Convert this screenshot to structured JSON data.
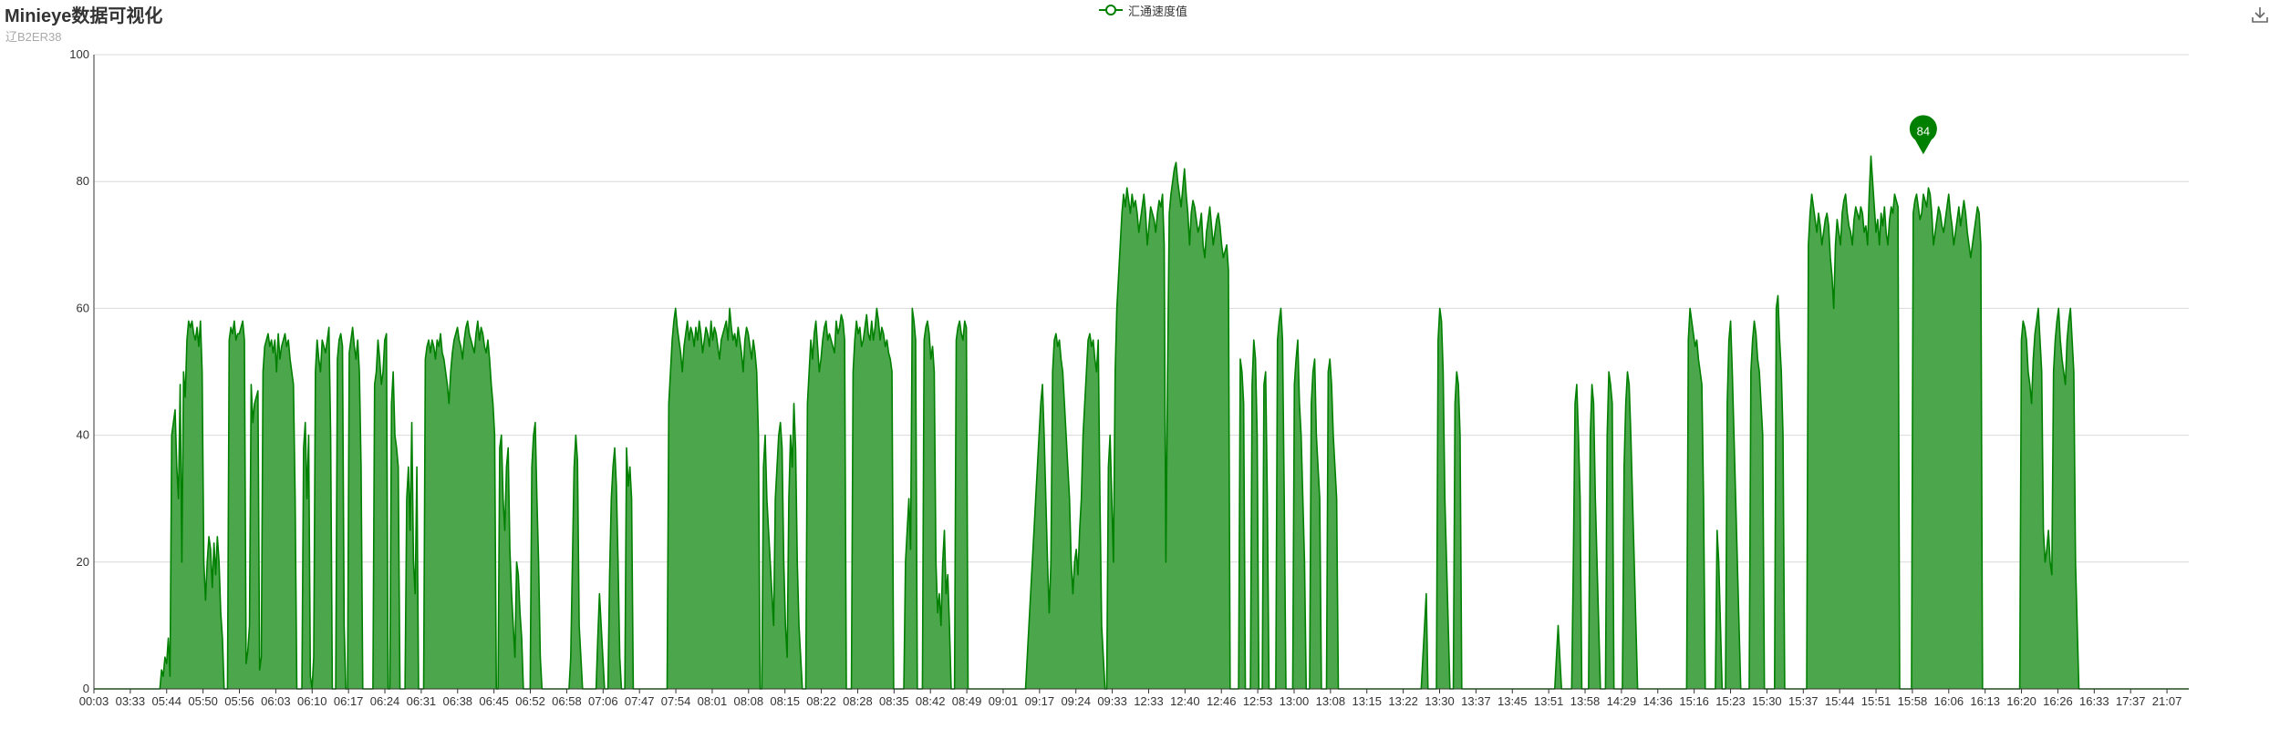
{
  "header": {
    "title": "Minieye数据可视化",
    "subtitle": "辽B2ER38"
  },
  "toolbar": {
    "download_icon": "download-icon"
  },
  "colors": {
    "line": "#008000",
    "area": "#4CA64C",
    "grid": "#d9d9d9",
    "axis": "#333333",
    "marker": "#008000",
    "marker_text": "#ffffff"
  },
  "chart_data": {
    "type": "area",
    "title": "Minieye数据可视化",
    "subtitle": "辽B2ER38",
    "legend": [
      "汇通速度值"
    ],
    "legend_position": "top-center",
    "grid": true,
    "ylim": [
      0,
      100
    ],
    "y_ticks": [
      0,
      20,
      40,
      60,
      80,
      100
    ],
    "x_tick_labels": [
      "00:03",
      "03:33",
      "05:44",
      "05:50",
      "05:56",
      "06:03",
      "06:10",
      "06:17",
      "06:24",
      "06:31",
      "06:38",
      "06:45",
      "06:52",
      "06:58",
      "07:06",
      "07:47",
      "07:54",
      "08:01",
      "08:08",
      "08:15",
      "08:22",
      "08:28",
      "08:35",
      "08:42",
      "08:49",
      "09:01",
      "09:17",
      "09:24",
      "09:33",
      "12:33",
      "12:40",
      "12:46",
      "12:53",
      "13:00",
      "13:08",
      "13:15",
      "13:22",
      "13:30",
      "13:37",
      "13:45",
      "13:51",
      "13:58",
      "14:29",
      "14:36",
      "15:16",
      "15:23",
      "15:30",
      "15:37",
      "15:44",
      "15:51",
      "15:58",
      "16:06",
      "16:13",
      "16:20",
      "16:26",
      "16:33",
      "17:37",
      "21:07"
    ],
    "series": [
      {
        "name": "汇通速度值",
        "max_marker": 84,
        "max_at_tick": 50.3,
        "values": [
          0,
          0,
          0,
          0,
          0,
          0,
          0,
          0,
          0,
          0,
          0,
          0,
          0,
          0,
          0,
          0,
          0,
          0,
          0,
          0,
          0,
          0,
          0,
          0,
          0,
          0,
          0,
          0,
          0,
          0,
          0,
          0,
          0,
          0,
          0,
          0,
          0,
          0,
          0,
          0,
          3,
          2,
          5,
          4,
          8,
          2,
          40,
          42,
          44,
          35,
          30,
          48,
          20,
          50,
          46,
          55,
          58,
          57,
          58,
          56,
          55,
          57,
          54,
          58,
          50,
          20,
          14,
          20,
          24,
          22,
          16,
          23,
          18,
          24,
          20,
          12,
          8,
          0,
          0,
          0,
          55,
          57,
          56,
          58,
          55,
          56,
          56,
          57,
          58,
          55,
          4,
          6,
          10,
          48,
          42,
          45,
          46,
          47,
          3,
          5,
          50,
          54,
          55,
          56,
          54,
          55,
          53,
          55,
          50,
          56,
          52,
          54,
          55,
          56,
          54,
          55,
          52,
          50,
          48,
          30,
          0,
          0,
          0,
          0,
          38,
          42,
          30,
          40,
          2,
          0,
          5,
          50,
          55,
          52,
          50,
          55,
          54,
          53,
          55,
          57,
          40,
          0,
          0,
          0,
          52,
          55,
          56,
          54,
          10,
          0,
          0,
          53,
          55,
          57,
          54,
          52,
          55,
          50,
          35,
          0,
          0,
          0,
          0,
          0,
          0,
          0,
          48,
          50,
          55,
          52,
          48,
          50,
          55,
          56,
          0,
          0,
          45,
          50,
          40,
          38,
          35,
          0,
          0,
          0,
          0,
          30,
          35,
          25,
          42,
          20,
          15,
          35,
          0,
          0,
          0,
          0,
          52,
          54,
          55,
          53,
          55,
          54,
          52,
          55,
          54,
          56,
          53,
          52,
          50,
          48,
          45,
          50,
          53,
          55,
          56,
          57,
          55,
          54,
          52,
          55,
          57,
          58,
          56,
          55,
          54,
          53,
          56,
          58,
          55,
          57,
          56,
          54,
          53,
          55,
          52,
          48,
          45,
          40,
          0,
          0,
          38,
          40,
          30,
          25,
          35,
          38,
          22,
          15,
          10,
          5,
          20,
          18,
          12,
          8,
          0,
          0,
          0,
          0,
          0,
          35,
          40,
          42,
          30,
          20,
          5,
          0,
          0,
          0,
          0,
          0,
          0,
          0,
          0,
          0,
          0,
          0,
          0,
          0,
          0,
          0,
          0,
          0,
          5,
          20,
          35,
          40,
          36,
          10,
          5,
          0,
          0,
          0,
          0,
          0,
          0,
          0,
          0,
          0,
          8,
          15,
          10,
          5,
          0,
          0,
          0,
          18,
          30,
          35,
          38,
          32,
          20,
          5,
          0,
          0,
          0,
          38,
          32,
          35,
          30,
          0,
          0,
          0,
          0,
          0,
          0,
          0,
          0,
          0,
          0,
          0,
          0,
          0,
          0,
          0,
          0,
          0,
          0,
          0,
          0,
          0,
          45,
          50,
          55,
          58,
          60,
          57,
          55,
          53,
          50,
          54,
          56,
          58,
          55,
          57,
          56,
          54,
          57,
          55,
          58,
          56,
          53,
          55,
          57,
          56,
          54,
          58,
          55,
          57,
          56,
          54,
          52,
          55,
          56,
          57,
          58,
          55,
          60,
          57,
          55,
          56,
          54,
          57,
          55,
          53,
          50,
          55,
          57,
          56,
          54,
          52,
          55,
          53,
          50,
          40,
          0,
          0,
          35,
          40,
          30,
          25,
          20,
          15,
          10,
          30,
          35,
          40,
          42,
          38,
          20,
          10,
          5,
          30,
          40,
          35,
          45,
          38,
          20,
          10,
          5,
          0,
          0,
          0,
          45,
          50,
          55,
          52,
          56,
          58,
          54,
          50,
          52,
          55,
          57,
          58,
          55,
          56,
          55,
          54,
          53,
          58,
          56,
          57,
          59,
          58,
          55,
          0,
          0,
          0,
          0,
          50,
          55,
          58,
          56,
          57,
          54,
          55,
          57,
          59,
          56,
          55,
          58,
          55,
          57,
          60,
          58,
          55,
          57,
          56,
          54,
          55,
          53,
          52,
          50,
          0,
          0,
          0,
          0,
          0,
          0,
          0,
          20,
          25,
          30,
          22,
          60,
          58,
          55,
          0,
          0,
          0,
          0,
          55,
          57,
          58,
          56,
          52,
          54,
          50,
          20,
          12,
          15,
          10,
          20,
          25,
          15,
          18,
          10,
          0,
          0,
          0,
          55,
          57,
          58,
          56,
          55,
          58,
          57,
          0,
          0,
          0,
          0,
          0,
          0,
          0,
          0,
          0,
          0,
          0,
          0,
          0,
          0,
          0,
          0,
          0,
          0,
          0,
          0,
          0,
          0,
          0,
          0,
          0,
          0,
          0,
          0,
          0,
          0,
          0,
          0,
          0,
          0,
          0,
          5,
          10,
          15,
          20,
          25,
          30,
          35,
          40,
          45,
          48,
          40,
          30,
          20,
          12,
          20,
          50,
          55,
          56,
          54,
          55,
          52,
          50,
          45,
          40,
          35,
          30,
          20,
          15,
          20,
          22,
          18,
          25,
          30,
          40,
          45,
          50,
          55,
          56,
          54,
          55,
          52,
          50,
          55,
          30,
          10,
          5,
          0,
          0,
          35,
          40,
          30,
          20,
          50,
          60,
          65,
          70,
          75,
          78,
          76,
          79,
          77,
          75,
          78,
          76,
          77,
          75,
          72,
          74,
          76,
          78,
          75,
          70,
          73,
          76,
          75,
          74,
          72,
          75,
          77,
          76,
          78,
          70,
          20,
          50,
          75,
          78,
          80,
          82,
          83,
          80,
          78,
          76,
          79,
          82,
          78,
          75,
          70,
          75,
          77,
          76,
          74,
          72,
          73,
          75,
          70,
          68,
          72,
          74,
          76,
          73,
          70,
          72,
          74,
          75,
          73,
          70,
          68,
          69,
          70,
          66,
          0,
          0,
          0,
          0,
          0,
          0,
          52,
          50,
          45,
          0,
          0,
          0,
          0,
          48,
          55,
          52,
          40,
          0,
          0,
          0,
          48,
          50,
          30,
          0,
          0,
          0,
          0,
          0,
          55,
          58,
          60,
          55,
          30,
          0,
          0,
          0,
          0,
          0,
          48,
          52,
          55,
          45,
          40,
          30,
          20,
          0,
          0,
          0,
          45,
          50,
          52,
          40,
          35,
          30,
          0,
          0,
          0,
          0,
          50,
          52,
          48,
          40,
          35,
          30,
          0,
          0,
          0,
          0,
          0,
          0,
          0,
          0,
          0,
          0,
          0,
          0,
          0,
          0,
          0,
          0,
          0,
          0,
          0,
          0,
          0,
          0,
          0,
          0,
          0,
          0,
          0,
          0,
          0,
          0,
          0,
          0,
          0,
          0,
          0,
          0,
          0,
          0,
          0,
          0,
          0,
          0,
          0,
          0,
          0,
          0,
          0,
          0,
          0,
          0,
          5,
          10,
          15,
          0,
          0,
          0,
          0,
          0,
          0,
          55,
          60,
          58,
          50,
          30,
          20,
          10,
          0,
          0,
          0,
          45,
          50,
          48,
          40,
          0,
          0,
          0,
          0,
          0,
          0,
          0,
          0,
          0,
          0,
          0,
          0,
          0,
          0,
          0,
          0,
          0,
          0,
          0,
          0,
          0,
          0,
          0,
          0,
          0,
          0,
          0,
          0,
          0,
          0,
          0,
          0,
          0,
          0,
          0,
          0,
          0,
          0,
          0,
          0,
          0,
          0,
          0,
          0,
          0,
          0,
          0,
          0,
          0,
          0,
          0,
          0,
          0,
          0,
          0,
          0,
          5,
          10,
          5,
          0,
          0,
          0,
          0,
          0,
          0,
          0,
          20,
          45,
          48,
          40,
          30,
          0,
          0,
          0,
          0,
          0,
          40,
          48,
          45,
          30,
          20,
          10,
          0,
          0,
          0,
          0,
          40,
          50,
          48,
          45,
          0,
          0,
          0,
          0,
          0,
          0,
          35,
          45,
          50,
          48,
          40,
          30,
          20,
          10,
          0,
          0,
          0,
          0,
          0,
          0,
          0,
          0,
          0,
          0,
          0,
          0,
          0,
          0,
          0,
          0,
          0,
          0,
          0,
          0,
          0,
          0,
          0,
          0,
          0,
          0,
          0,
          0,
          0,
          0,
          55,
          60,
          58,
          56,
          54,
          55,
          52,
          50,
          48,
          30,
          0,
          0,
          0,
          0,
          0,
          0,
          0,
          25,
          20,
          10,
          0,
          0,
          0,
          45,
          55,
          58,
          50,
          40,
          30,
          20,
          10,
          0,
          0,
          0,
          0,
          0,
          0,
          50,
          55,
          58,
          56,
          52,
          50,
          45,
          40,
          0,
          0,
          0,
          0,
          0,
          0,
          0,
          60,
          62,
          55,
          50,
          40,
          0,
          0,
          0,
          0,
          0,
          0,
          0,
          0,
          0,
          0,
          0,
          0,
          0,
          0,
          70,
          75,
          78,
          76,
          74,
          72,
          75,
          73,
          70,
          72,
          74,
          75,
          73,
          68,
          65,
          60,
          70,
          74,
          72,
          70,
          75,
          77,
          78,
          75,
          73,
          72,
          70,
          74,
          76,
          75,
          74,
          76,
          75,
          72,
          73,
          70,
          78,
          84,
          80,
          76,
          72,
          74,
          70,
          75,
          73,
          76,
          72,
          70,
          74,
          76,
          75,
          78,
          77,
          76,
          0,
          0,
          0,
          0,
          0,
          0,
          0,
          0,
          75,
          77,
          78,
          76,
          74,
          75,
          78,
          77,
          76,
          79,
          78,
          75,
          70,
          72,
          74,
          76,
          75,
          73,
          72,
          74,
          76,
          78,
          75,
          73,
          70,
          72,
          74,
          76,
          73,
          75,
          77,
          75,
          72,
          70,
          68,
          70,
          72,
          74,
          76,
          75,
          70,
          0,
          0,
          0,
          0,
          0,
          0,
          0,
          0,
          0,
          0,
          0,
          0,
          0,
          0,
          0,
          0,
          0,
          0,
          0,
          0,
          0,
          0,
          0,
          55,
          58,
          57,
          55,
          50,
          48,
          45,
          52,
          56,
          58,
          60,
          55,
          50,
          25,
          20,
          22,
          25,
          20,
          18,
          50,
          55,
          58,
          60,
          55,
          52,
          50,
          48,
          55,
          58,
          60,
          55,
          50,
          20,
          10,
          0,
          0,
          0,
          0,
          0,
          0,
          0,
          0,
          0,
          0,
          0,
          0,
          0,
          0,
          0,
          0,
          0,
          0,
          0,
          0,
          0,
          0,
          0,
          0,
          0,
          0,
          0,
          0,
          0,
          0,
          0,
          0,
          0,
          0,
          0,
          0,
          0,
          0,
          0,
          0,
          0,
          0,
          0,
          0,
          0,
          0,
          0,
          0,
          0,
          0,
          0,
          0,
          0,
          0,
          0,
          0,
          0,
          0,
          0,
          0,
          0,
          0,
          0,
          0,
          0,
          0
        ]
      }
    ]
  }
}
